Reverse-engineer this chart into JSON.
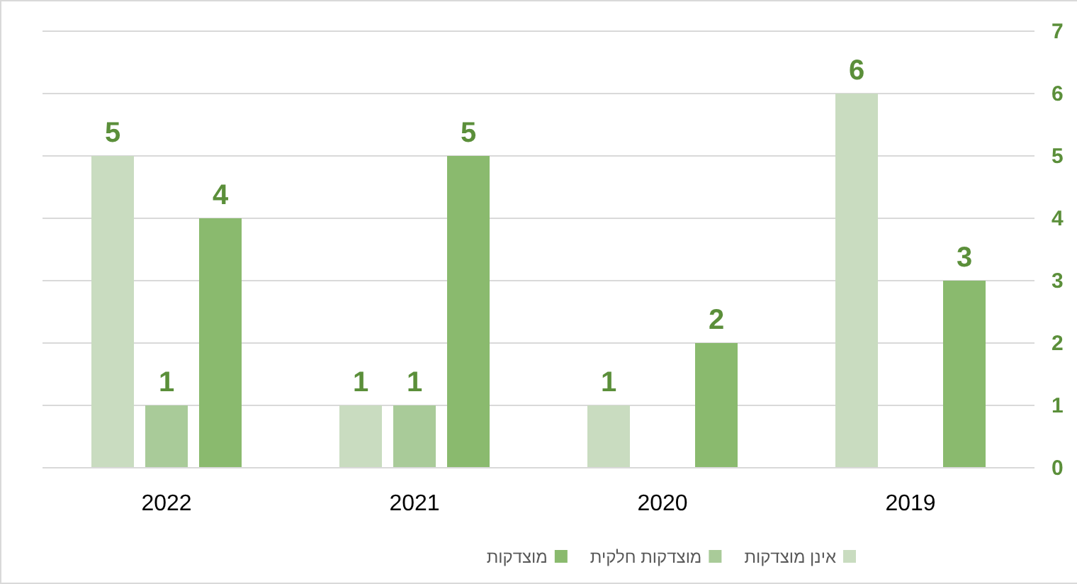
{
  "chart_data": {
    "type": "bar",
    "categories": [
      "2022",
      "2021",
      "2020",
      "2019"
    ],
    "series": [
      {
        "name": "אינן מוצדקות",
        "color": "#c9dcc0",
        "values": [
          5,
          1,
          1,
          6
        ]
      },
      {
        "name": "מוצדקות חלקית",
        "color": "#a9cb99",
        "values": [
          1,
          1,
          null,
          null
        ]
      },
      {
        "name": "מוצדקות",
        "color": "#8aba6e",
        "values": [
          4,
          5,
          2,
          3
        ]
      }
    ],
    "ylim": [
      0,
      7
    ],
    "yticks": [
      0,
      1,
      2,
      3,
      4,
      5,
      6,
      7
    ],
    "grid": "y",
    "legend": "bottom",
    "data_labels": true
  }
}
